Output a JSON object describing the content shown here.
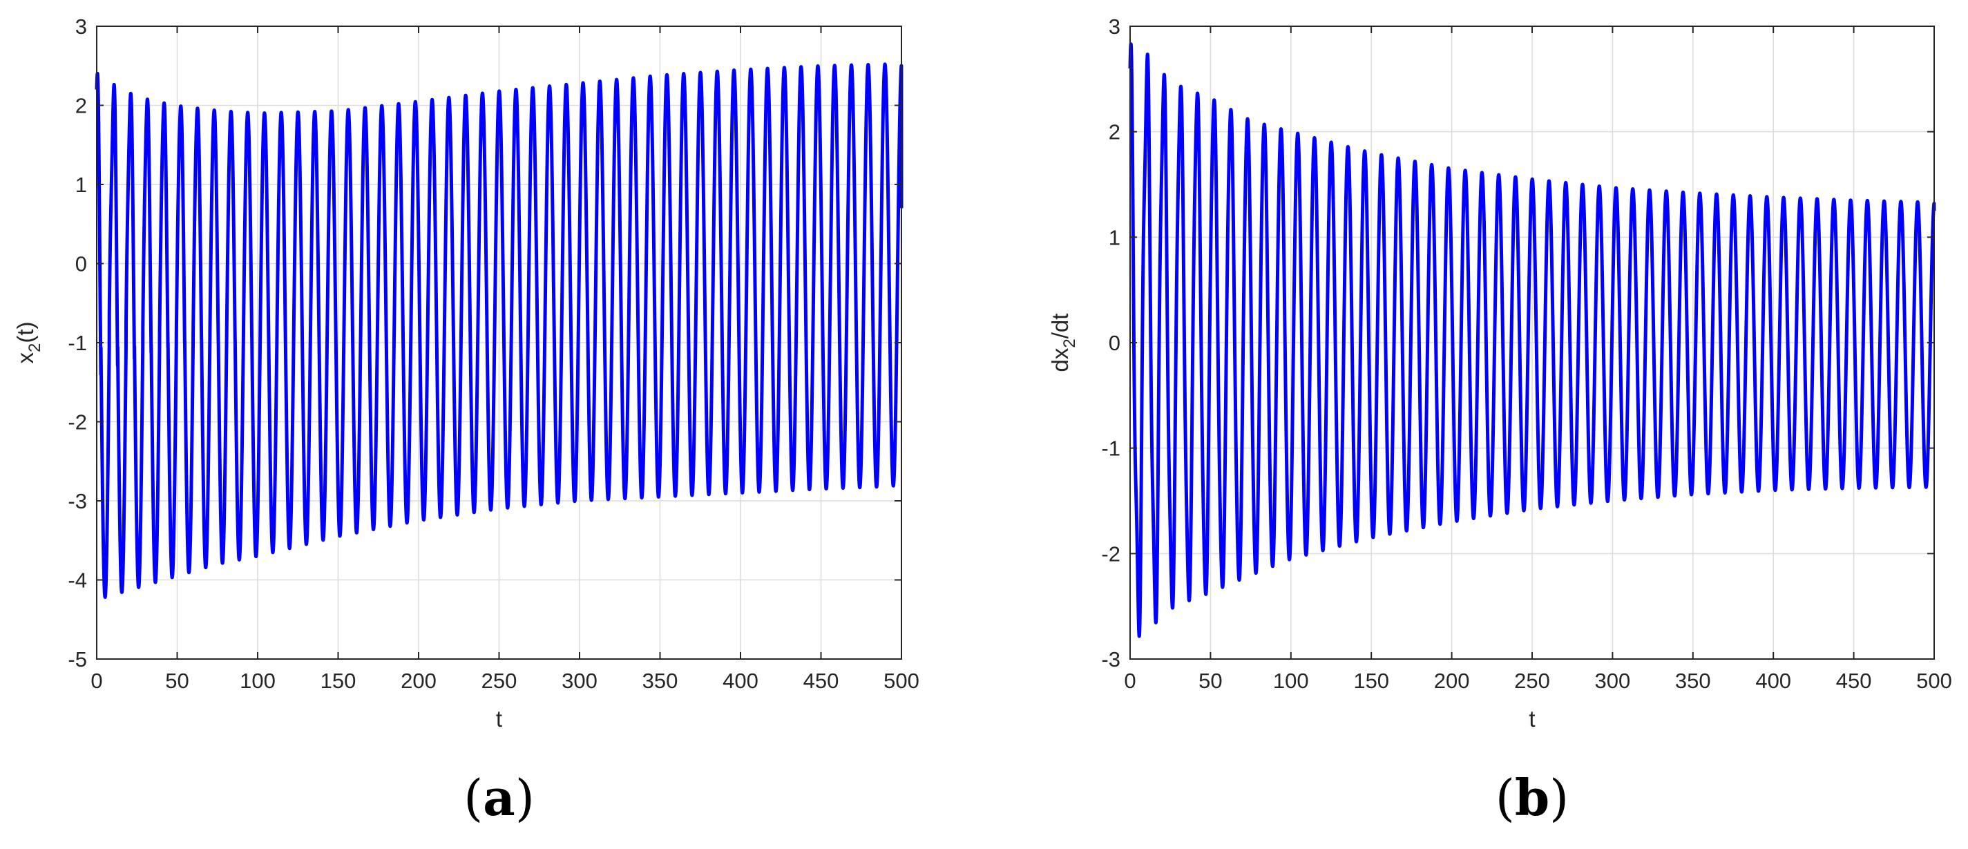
{
  "colors": {
    "line": "#0000ff",
    "grid": "#dcdcdc",
    "axis": "#262626"
  },
  "chart_data": [
    {
      "type": "line",
      "panel": "(a)",
      "panel_letter": "a",
      "xlabel": "t",
      "ylabel_base": "x",
      "ylabel_sub": "2",
      "ylabel_tail": "(t)",
      "xlim": [
        0,
        500
      ],
      "ylim": [
        -5,
        3
      ],
      "xticks": [
        0,
        50,
        100,
        150,
        200,
        250,
        300,
        350,
        400,
        450,
        500
      ],
      "yticks": [
        -5,
        -4,
        -3,
        -2,
        -1,
        0,
        1,
        2,
        3
      ],
      "grid": true,
      "series": [
        {
          "period": 10.42,
          "x": [
            0,
            25,
            50,
            75,
            100,
            150,
            200,
            250,
            300,
            350,
            400,
            450,
            490,
            500
          ],
          "max": [
            2.2,
            2.05,
            1.98,
            1.93,
            1.9,
            1.93,
            2.05,
            2.18,
            2.28,
            2.38,
            2.45,
            2.5,
            2.52,
            2.52
          ],
          "min": [
            -4.25,
            -4.1,
            -3.95,
            -3.8,
            -3.7,
            -3.45,
            -3.25,
            -3.1,
            -3.0,
            -2.95,
            -2.9,
            -2.85,
            -2.82,
            -2.8
          ],
          "end_value": 0.7
        }
      ]
    },
    {
      "type": "line",
      "panel": "(b)",
      "panel_letter": "b",
      "xlabel": "t",
      "ylabel_base": "dx",
      "ylabel_sub": "2",
      "ylabel_tail": "/dt",
      "xlim": [
        0,
        500
      ],
      "ylim": [
        -3,
        3
      ],
      "xticks": [
        0,
        50,
        100,
        150,
        200,
        250,
        300,
        350,
        400,
        450,
        500
      ],
      "yticks": [
        -3,
        -2,
        -1,
        0,
        1,
        2,
        3
      ],
      "grid": true,
      "series": [
        {
          "period": 10.42,
          "x": [
            0,
            10,
            25,
            50,
            75,
            100,
            150,
            200,
            250,
            300,
            350,
            400,
            450,
            500
          ],
          "max": [
            2.6,
            2.6,
            2.4,
            2.3,
            2.1,
            2.0,
            1.8,
            1.65,
            1.55,
            1.47,
            1.42,
            1.38,
            1.35,
            1.33
          ],
          "min": [
            -2.6,
            -2.6,
            -2.45,
            -2.35,
            -2.2,
            -2.05,
            -1.85,
            -1.7,
            -1.58,
            -1.5,
            -1.44,
            -1.4,
            -1.38,
            -1.37
          ],
          "end_value": 1.25
        }
      ]
    }
  ]
}
